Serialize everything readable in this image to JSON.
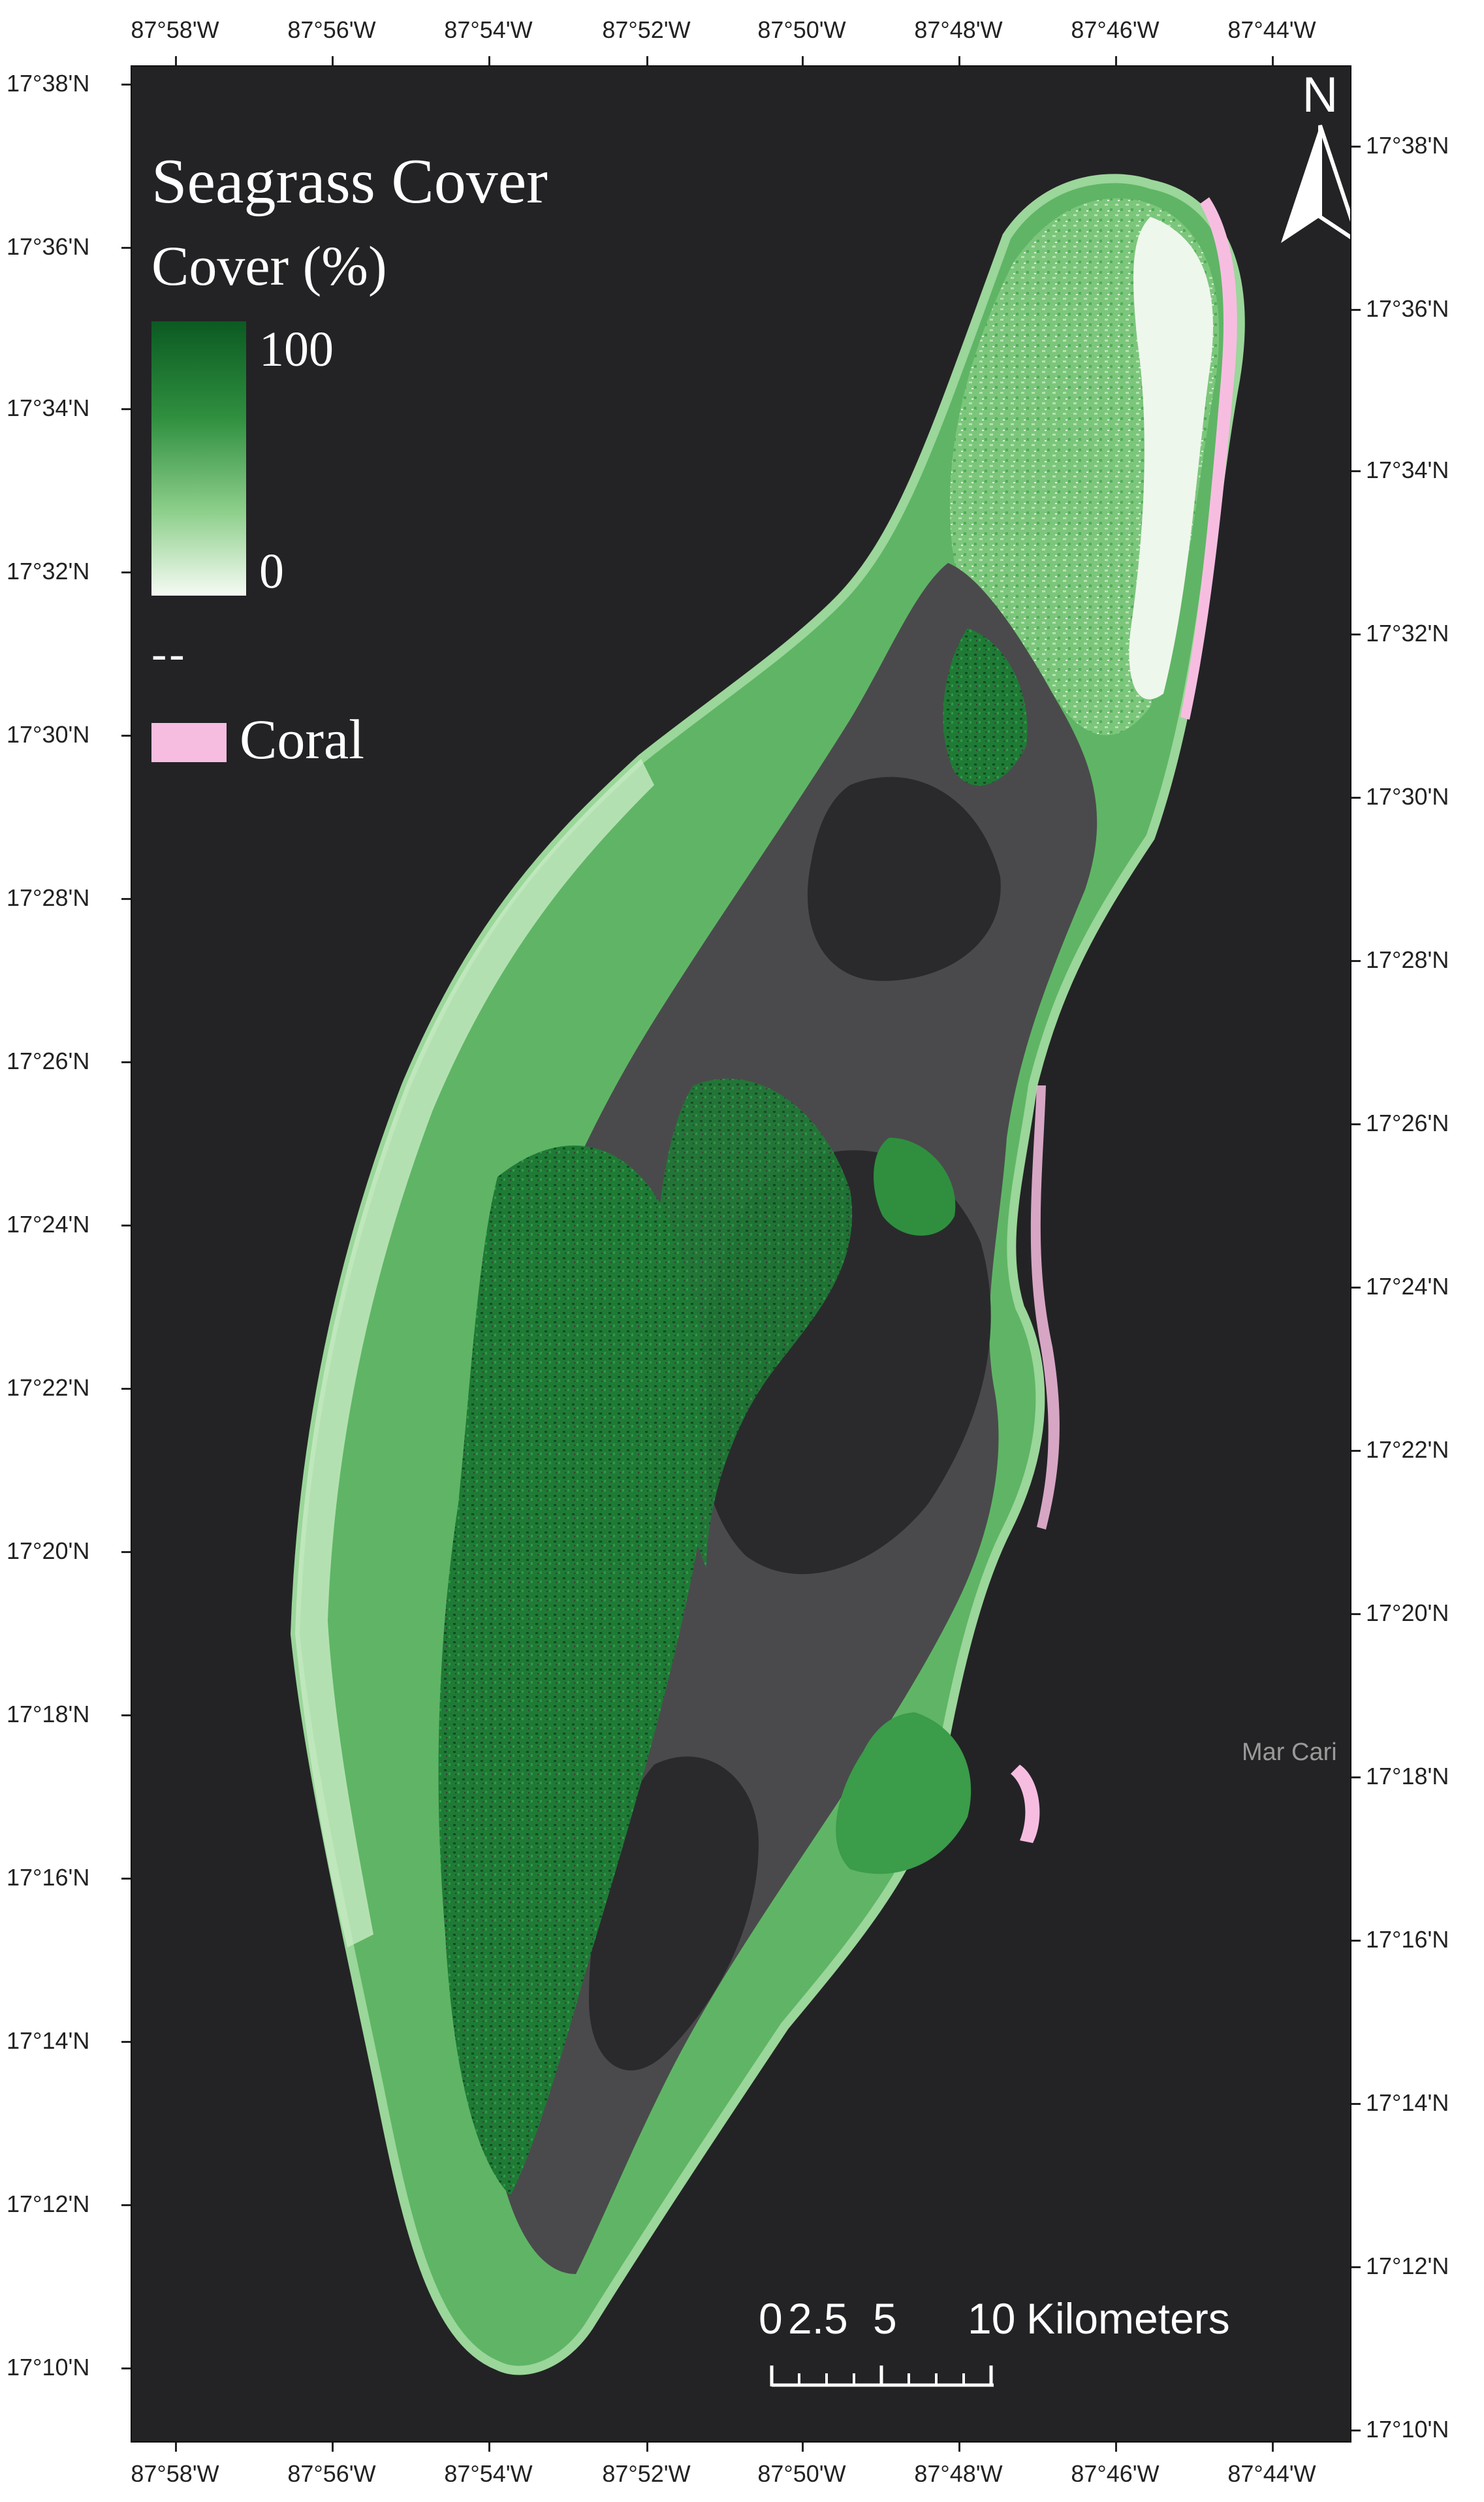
{
  "legend": {
    "title": "Seagrass Cover",
    "subtitle": "Cover (%)",
    "ramp_max": "100",
    "ramp_min": "0",
    "separator": "--",
    "coral_label": "Coral",
    "colors": {
      "seagrass_high": "#0b5a22",
      "seagrass_low": "#f6fbf4",
      "coral": "#f7bde1",
      "lagoon": "#4a4a4c",
      "background": "#232325"
    }
  },
  "north_arrow": {
    "letter": "N"
  },
  "scale_bar": {
    "labels": [
      "0",
      "2.5",
      "5",
      "10",
      "Kilometers"
    ]
  },
  "place_label": "Mar Cari",
  "axes": {
    "top_longitudes": [
      "87°58'W",
      "87°56'W",
      "87°54'W",
      "87°52'W",
      "87°50'W",
      "87°48'W",
      "87°46'W",
      "87°44'W"
    ],
    "bottom_longitudes": [
      "87°58'W",
      "87°56'W",
      "87°54'W",
      "87°52'W",
      "87°50'W",
      "87°48'W",
      "87°46'W",
      "87°44'W"
    ],
    "left_latitudes": [
      "17°38'N",
      "17°36'N",
      "17°34'N",
      "17°32'N",
      "17°30'N",
      "17°28'N",
      "17°26'N",
      "17°24'N",
      "17°22'N",
      "17°20'N",
      "17°18'N",
      "17°16'N",
      "17°14'N",
      "17°12'N",
      "17°10'N"
    ],
    "right_latitudes": [
      "17°38'N",
      "17°36'N",
      "17°34'N",
      "17°32'N",
      "17°30'N",
      "17°28'N",
      "17°26'N",
      "17°24'N",
      "17°22'N",
      "17°20'N",
      "17°18'N",
      "17°16'N",
      "17°14'N",
      "17°12'N",
      "17°10'N"
    ]
  }
}
